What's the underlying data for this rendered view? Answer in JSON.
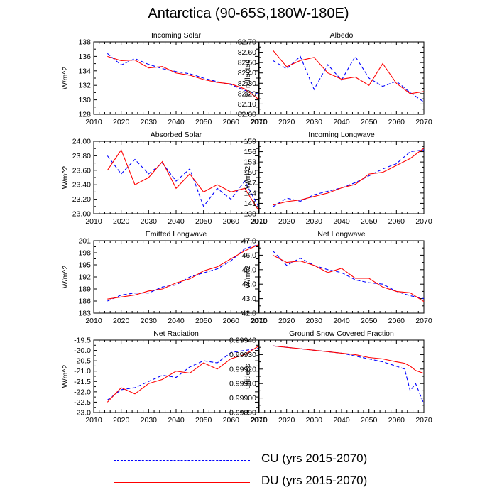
{
  "title": "Antarctica (90-65S,180W-180E)",
  "legend": {
    "cu": {
      "label": "CU (yrs 2015-2070)",
      "color": "#0000ff"
    },
    "du": {
      "label": "DU (yrs 2015-2070)",
      "color": "#ff0000"
    }
  },
  "chart_data": [
    {
      "type": "line",
      "title": "Incoming Solar",
      "xlabel": "",
      "ylabel": "W/m^2",
      "xlim": [
        2010,
        2070
      ],
      "xticks": [
        2010,
        2020,
        2030,
        2040,
        2050,
        2060,
        2070
      ],
      "ylim": [
        128,
        138
      ],
      "yticks": [
        "128",
        "130",
        "132",
        "134",
        "136",
        "138"
      ],
      "series": [
        {
          "name": "CU",
          "x": [
            2015,
            2020,
            2025,
            2030,
            2035,
            2040,
            2045,
            2050,
            2055,
            2060,
            2065,
            2070
          ],
          "values": [
            136.4,
            134.8,
            135.7,
            134.9,
            134.3,
            133.9,
            133.6,
            133.0,
            132.5,
            132.1,
            131.3,
            130.8
          ]
        },
        {
          "name": "DU",
          "x": [
            2015,
            2020,
            2025,
            2030,
            2035,
            2040,
            2045,
            2050,
            2055,
            2060,
            2065,
            2070
          ],
          "values": [
            136.0,
            135.4,
            135.5,
            134.4,
            134.6,
            133.7,
            133.4,
            132.8,
            132.4,
            132.2,
            131.5,
            130.1
          ]
        }
      ]
    },
    {
      "type": "line",
      "title": "Albedo",
      "xlabel": "",
      "ylabel": "% reflected",
      "xlim": [
        2010,
        2070
      ],
      "xticks": [
        2010,
        2020,
        2030,
        2040,
        2050,
        2060,
        2070
      ],
      "ylim": [
        82.0,
        82.7
      ],
      "yticks": [
        "82.00",
        "82.10",
        "82.20",
        "82.30",
        "82.40",
        "82.50",
        "82.60",
        "82.70"
      ],
      "series": [
        {
          "name": "CU",
          "x": [
            2015,
            2020,
            2025,
            2030,
            2035,
            2040,
            2045,
            2050,
            2055,
            2060,
            2065,
            2070
          ],
          "values": [
            82.52,
            82.44,
            82.56,
            82.24,
            82.48,
            82.33,
            82.56,
            82.35,
            82.27,
            82.32,
            82.21,
            82.12
          ]
        },
        {
          "name": "DU",
          "x": [
            2015,
            2020,
            2025,
            2030,
            2035,
            2040,
            2045,
            2050,
            2055,
            2060,
            2065,
            2070
          ],
          "values": [
            82.62,
            82.46,
            82.52,
            82.55,
            82.4,
            82.34,
            82.36,
            82.28,
            82.49,
            82.3,
            82.2,
            82.22
          ]
        }
      ]
    },
    {
      "type": "line",
      "title": "Absorbed Solar",
      "xlabel": "",
      "ylabel": "W/m^2",
      "xlim": [
        2010,
        2070
      ],
      "xticks": [
        2010,
        2020,
        2030,
        2040,
        2050,
        2060,
        2070
      ],
      "ylim": [
        23.0,
        24.0
      ],
      "yticks": [
        "23.00",
        "23.20",
        "23.40",
        "23.60",
        "23.80",
        "24.00"
      ],
      "series": [
        {
          "name": "CU",
          "x": [
            2015,
            2020,
            2025,
            2030,
            2035,
            2040,
            2045,
            2050,
            2055,
            2060,
            2065,
            2070
          ],
          "values": [
            23.8,
            23.55,
            23.75,
            23.55,
            23.7,
            23.45,
            23.62,
            23.1,
            23.35,
            23.2,
            23.45,
            23.1
          ]
        },
        {
          "name": "DU",
          "x": [
            2015,
            2020,
            2025,
            2030,
            2035,
            2040,
            2045,
            2050,
            2055,
            2060,
            2065,
            2070
          ],
          "values": [
            23.6,
            23.88,
            23.4,
            23.5,
            23.72,
            23.35,
            23.55,
            23.3,
            23.4,
            23.3,
            23.35,
            23.05
          ]
        }
      ]
    },
    {
      "type": "line",
      "title": "Incoming Longwave",
      "xlabel": "",
      "ylabel": "W/m^2",
      "xlim": [
        2010,
        2070
      ],
      "xticks": [
        2010,
        2020,
        2030,
        2040,
        2050,
        2060,
        2070
      ],
      "ylim": [
        138,
        159
      ],
      "yticks": [
        "138",
        "141",
        "144",
        "147",
        "150",
        "153",
        "156",
        "159"
      ],
      "series": [
        {
          "name": "CU",
          "x": [
            2015,
            2020,
            2025,
            2030,
            2035,
            2040,
            2045,
            2050,
            2055,
            2060,
            2065,
            2070
          ],
          "values": [
            140.0,
            142.5,
            141.6,
            143.5,
            144.5,
            145.5,
            147.0,
            149.0,
            151.0,
            152.5,
            156.0,
            156.5
          ]
        },
        {
          "name": "DU",
          "x": [
            2015,
            2020,
            2025,
            2030,
            2035,
            2040,
            2045,
            2050,
            2055,
            2060,
            2065,
            2070
          ],
          "values": [
            140.5,
            141.5,
            142.0,
            143.0,
            144.0,
            145.5,
            146.5,
            149.5,
            150.0,
            152.0,
            154.0,
            157.0
          ]
        }
      ]
    },
    {
      "type": "line",
      "title": "Emitted Longwave",
      "xlabel": "",
      "ylabel": "W/m^2",
      "xlim": [
        2010,
        2070
      ],
      "xticks": [
        2010,
        2020,
        2030,
        2040,
        2050,
        2060,
        2070
      ],
      "ylim": [
        183,
        201
      ],
      "yticks": [
        "183",
        "186",
        "189",
        "192",
        "195",
        "198",
        "201"
      ],
      "series": [
        {
          "name": "CU",
          "x": [
            2015,
            2020,
            2025,
            2030,
            2035,
            2040,
            2045,
            2050,
            2055,
            2060,
            2065,
            2070
          ],
          "values": [
            186.0,
            187.5,
            188.0,
            188.0,
            189.5,
            190.0,
            192.0,
            193.0,
            194.0,
            196.0,
            199.0,
            200.0
          ]
        },
        {
          "name": "DU",
          "x": [
            2015,
            2020,
            2025,
            2030,
            2035,
            2040,
            2045,
            2050,
            2055,
            2060,
            2065,
            2070
          ],
          "values": [
            186.5,
            187.0,
            187.5,
            188.5,
            189.0,
            190.5,
            191.5,
            193.5,
            194.5,
            196.5,
            198.5,
            200.0
          ]
        }
      ]
    },
    {
      "type": "line",
      "title": "Net Longwave",
      "xlabel": "",
      "ylabel": "W/m^2",
      "xlim": [
        2010,
        2070
      ],
      "xticks": [
        2010,
        2020,
        2030,
        2040,
        2050,
        2060,
        2070
      ],
      "ylim": [
        42.0,
        47.0
      ],
      "yticks": [
        "42.0",
        "43.0",
        "44.0",
        "45.0",
        "46.0",
        "47.0"
      ],
      "series": [
        {
          "name": "CU",
          "x": [
            2015,
            2020,
            2025,
            2030,
            2035,
            2040,
            2045,
            2050,
            2055,
            2060,
            2065,
            2070
          ],
          "values": [
            46.3,
            45.3,
            45.8,
            45.3,
            45.0,
            44.8,
            44.3,
            44.1,
            44.0,
            43.5,
            43.2,
            43.0
          ]
        },
        {
          "name": "DU",
          "x": [
            2015,
            2020,
            2025,
            2030,
            2035,
            2040,
            2045,
            2050,
            2055,
            2060,
            2065,
            2070
          ],
          "values": [
            46.0,
            45.5,
            45.6,
            45.3,
            44.8,
            45.1,
            44.4,
            44.4,
            43.8,
            43.5,
            43.4,
            42.8
          ]
        }
      ]
    },
    {
      "type": "line",
      "title": "Net Radiation",
      "xlabel": "",
      "ylabel": "W/m^2",
      "xlim": [
        2010,
        2070
      ],
      "xticks": [
        2010,
        2020,
        2030,
        2040,
        2050,
        2060,
        2070
      ],
      "ylim": [
        -23.0,
        -19.5
      ],
      "yticks": [
        "-23.0",
        "-22.5",
        "-22.0",
        "-21.5",
        "-21.0",
        "-20.5",
        "-20.0",
        "-19.5"
      ],
      "series": [
        {
          "name": "CU",
          "x": [
            2015,
            2020,
            2025,
            2030,
            2035,
            2040,
            2045,
            2050,
            2055,
            2060,
            2065,
            2070
          ],
          "values": [
            -22.4,
            -21.9,
            -21.8,
            -21.5,
            -21.2,
            -21.3,
            -20.8,
            -20.5,
            -20.6,
            -20.1,
            -20.0,
            -19.9
          ]
        },
        {
          "name": "DU",
          "x": [
            2015,
            2020,
            2025,
            2030,
            2035,
            2040,
            2045,
            2050,
            2055,
            2060,
            2065,
            2070
          ],
          "values": [
            -22.5,
            -21.8,
            -22.1,
            -21.6,
            -21.4,
            -21.0,
            -21.1,
            -20.6,
            -20.9,
            -20.4,
            -20.2,
            -19.8
          ]
        }
      ]
    },
    {
      "type": "line",
      "title": "Ground Snow Covered Fraction",
      "xlabel": "",
      "ylabel": "unitless",
      "xlim": [
        2010,
        2070
      ],
      "xticks": [
        2010,
        2020,
        2030,
        2040,
        2050,
        2060,
        2070
      ],
      "ylim": [
        0.9989,
        0.9994
      ],
      "yticks": [
        "0.99890",
        "0.99900",
        "0.99910",
        "0.99920",
        "0.99930",
        "0.99940"
      ],
      "series": [
        {
          "name": "CU",
          "x": [
            2015,
            2020,
            2025,
            2030,
            2035,
            2040,
            2045,
            2050,
            2055,
            2060,
            2063,
            2065,
            2067,
            2070
          ],
          "values": [
            0.99936,
            0.99935,
            0.99934,
            0.99933,
            0.99932,
            0.99931,
            0.99929,
            0.99927,
            0.99925,
            0.99922,
            0.9992,
            0.99905,
            0.9991,
            0.99896
          ]
        },
        {
          "name": "DU",
          "x": [
            2015,
            2020,
            2025,
            2030,
            2035,
            2040,
            2045,
            2050,
            2055,
            2060,
            2063,
            2065,
            2067,
            2070
          ],
          "values": [
            0.99936,
            0.99935,
            0.99934,
            0.99933,
            0.99932,
            0.99931,
            0.9993,
            0.99928,
            0.99927,
            0.99925,
            0.99924,
            0.99922,
            0.99919,
            0.99917
          ]
        }
      ]
    }
  ]
}
